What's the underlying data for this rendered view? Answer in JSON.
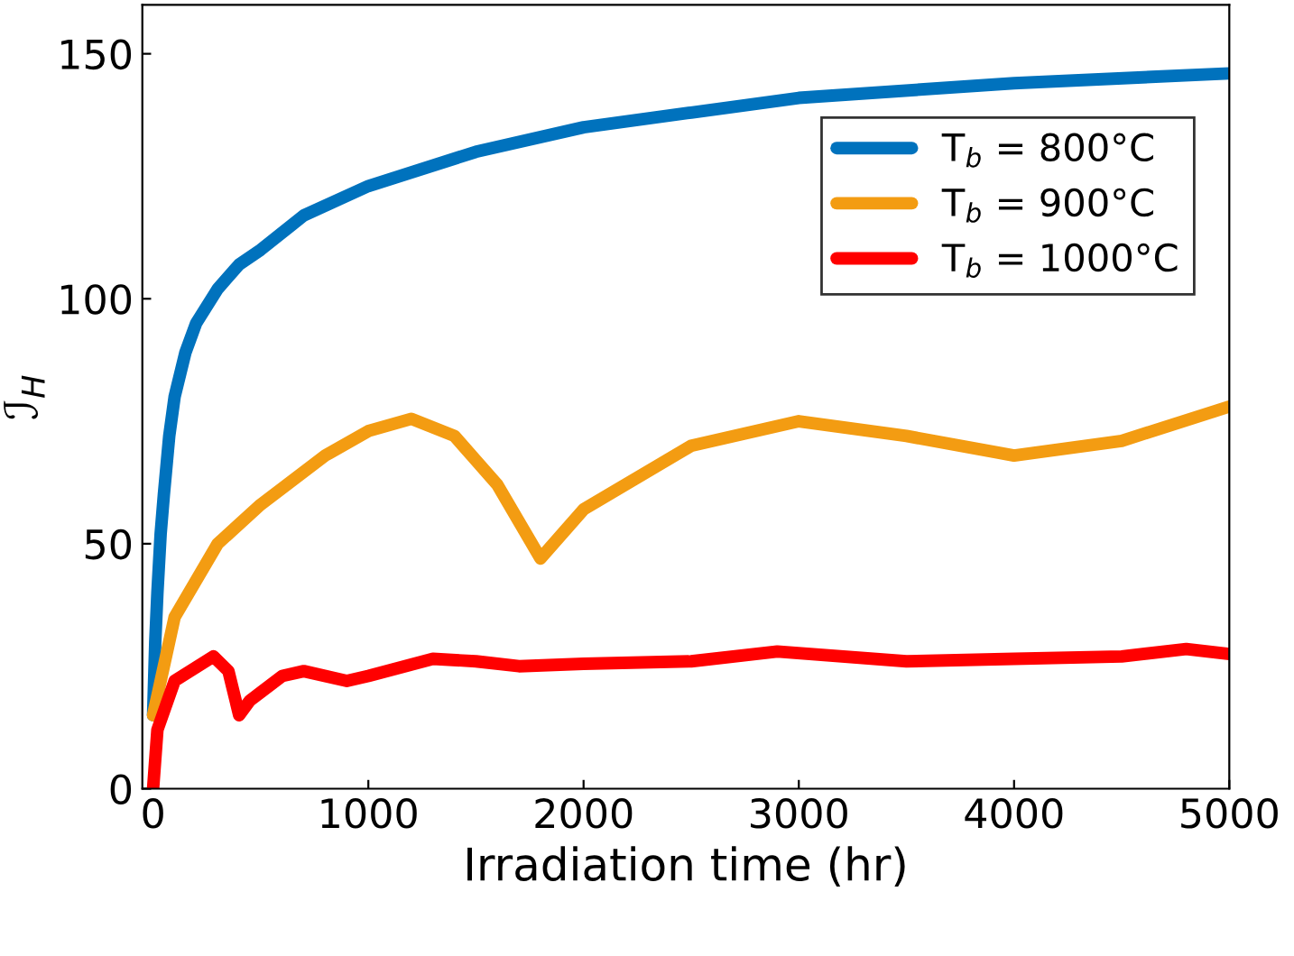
{
  "chart_data": {
    "type": "line",
    "xlabel": "Irradiation time (hr)",
    "ylabel": "ℐ$_{H}$",
    "xlim": [
      -50,
      5000
    ],
    "xticks": [
      0,
      1000,
      2000,
      3000,
      4000,
      5000
    ],
    "ylim": [
      0,
      160
    ],
    "yticks": [
      0,
      50,
      100,
      150
    ],
    "grid": false,
    "legend": "top right",
    "line_style": "solid",
    "marker": "none",
    "series": [
      {
        "name": "T$_{b}$ = 800°C",
        "color": "#0072bd",
        "x": [
          0,
          10,
          20,
          35,
          50,
          75,
          100,
          150,
          200,
          300,
          400,
          500,
          700,
          1000,
          1500,
          2000,
          2500,
          3000,
          4000,
          5000
        ],
        "values": [
          15,
          30,
          40,
          52,
          60,
          72,
          80,
          89,
          95,
          102,
          107,
          110,
          117,
          123,
          130,
          135,
          138,
          141,
          144,
          146
        ]
      },
      {
        "name": "T$_{b}$ = 900°C",
        "color": "#f39c12",
        "x": [
          0,
          100,
          300,
          500,
          800,
          1000,
          1200,
          1400,
          1600,
          1800,
          2000,
          2500,
          3000,
          3500,
          4000,
          4500,
          5000
        ],
        "values": [
          15,
          35,
          50,
          58,
          68,
          73,
          75.5,
          72,
          62,
          47,
          57,
          70,
          75,
          72,
          68,
          71,
          78
        ]
      },
      {
        "name": "T$_{b}$ = 1000°C",
        "color": "#ff0000",
        "x": [
          0,
          20,
          100,
          280,
          350,
          400,
          450,
          600,
          700,
          900,
          1000,
          1300,
          1500,
          1700,
          2000,
          2500,
          2900,
          3500,
          4000,
          4500,
          4800,
          5000
        ],
        "values": [
          0,
          12,
          22,
          27,
          24,
          15,
          18,
          23,
          24,
          22,
          23,
          26.5,
          26,
          25,
          25.5,
          26,
          28,
          26,
          26.5,
          27,
          28.5,
          27.5
        ]
      }
    ]
  }
}
